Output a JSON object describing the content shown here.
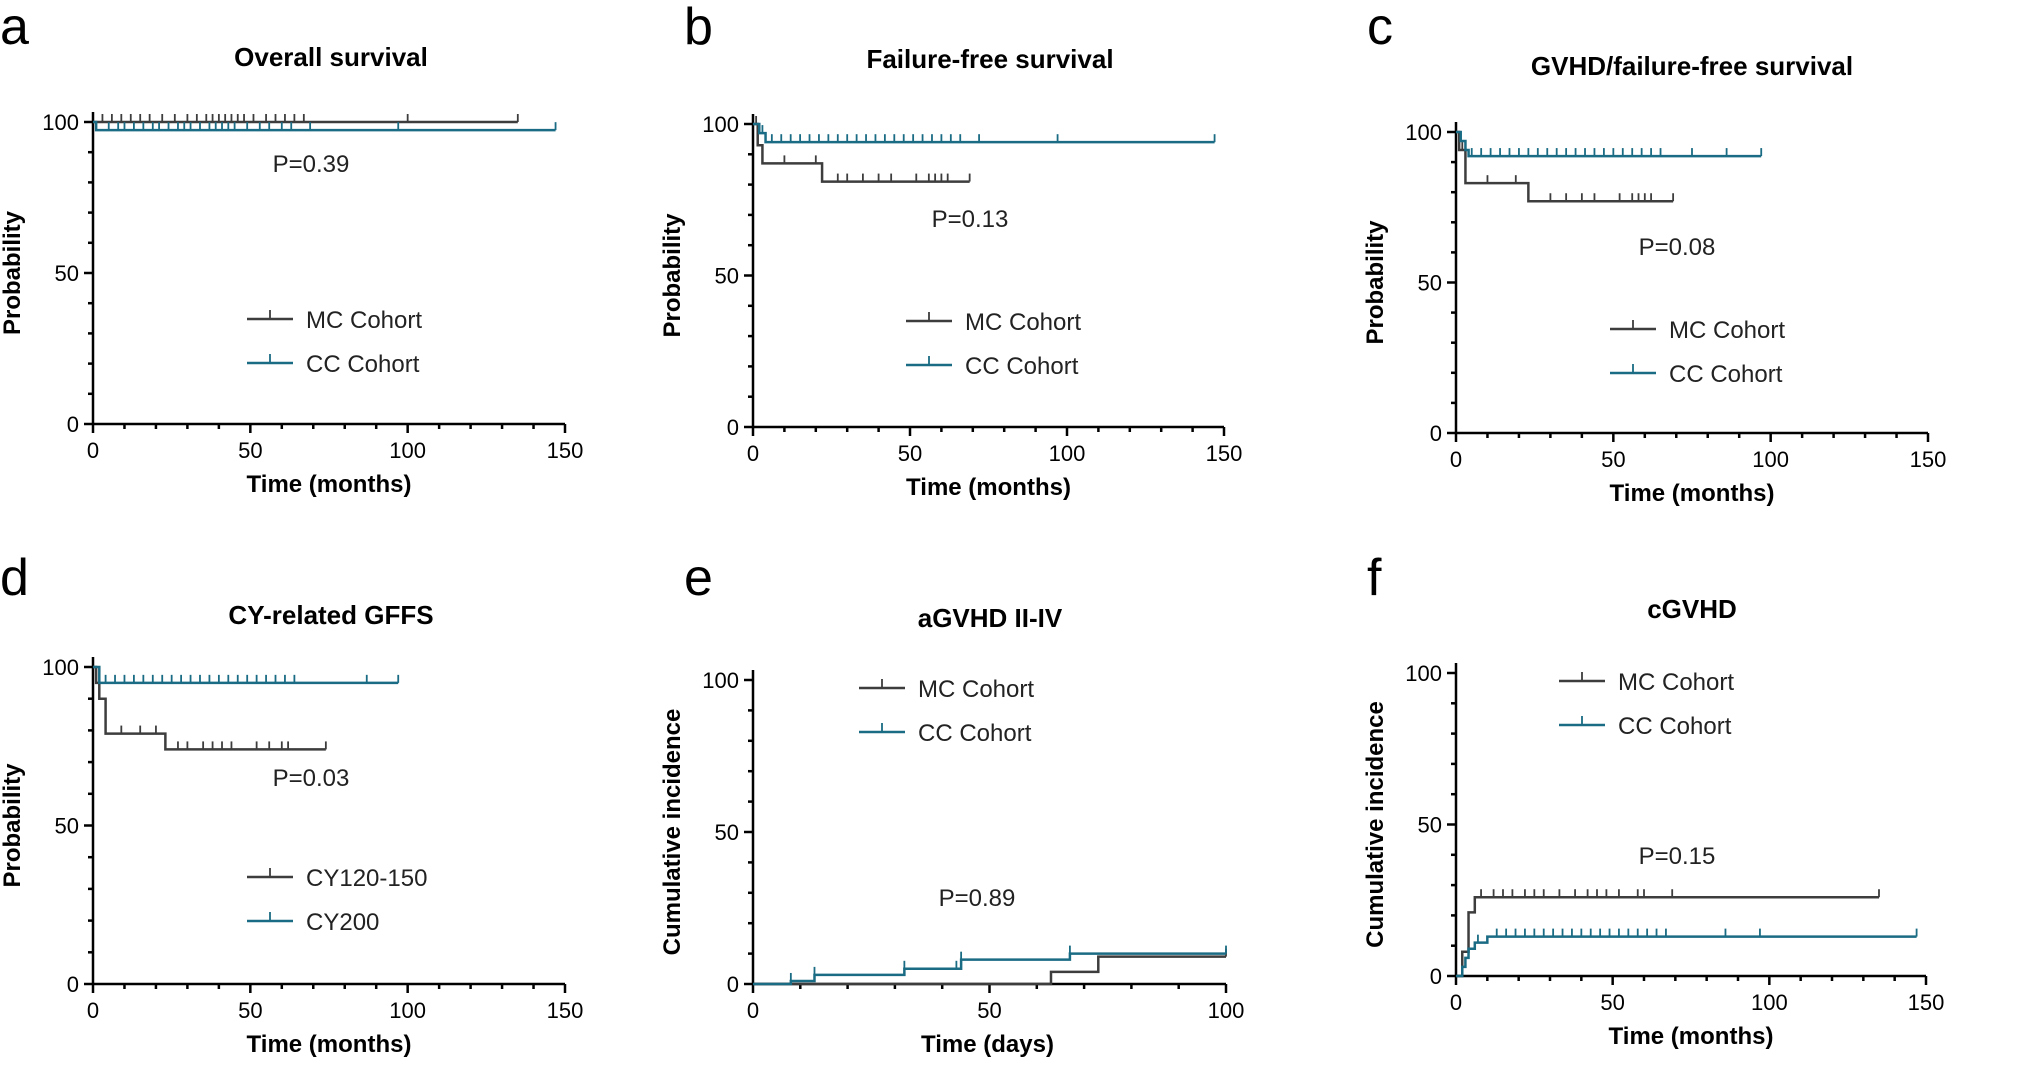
{
  "colors": {
    "mc": "#3d3d3d",
    "cc": "#1a6b84"
  },
  "chart_data": [
    {
      "letter": "a",
      "type": "line",
      "title": "Overall survival",
      "xlabel": "Time (months)",
      "ylabel": "Probability",
      "xlim": [
        0,
        150
      ],
      "ylim": [
        0,
        100
      ],
      "xticks": [
        0,
        50,
        100,
        150
      ],
      "yticks": [
        0,
        50,
        100
      ],
      "pvalue": "P=0.39",
      "legend_pos": "middle-right",
      "series": [
        {
          "name": "MC Cohort",
          "color_key": "mc",
          "steps": [
            [
              0,
              100
            ],
            [
              135,
              100
            ]
          ],
          "censors": [
            3,
            6,
            9,
            12,
            15,
            18,
            22,
            26,
            30,
            33,
            36,
            38,
            40,
            42,
            44,
            46,
            48,
            51,
            55,
            58,
            61,
            64,
            67,
            100,
            135
          ]
        },
        {
          "name": "CC Cohort",
          "color_key": "cc",
          "steps": [
            [
              0,
              100
            ],
            [
              1,
              97.3
            ],
            [
              147,
              97.3
            ]
          ],
          "censors": [
            5,
            8,
            10,
            13,
            16,
            19,
            21,
            24,
            27,
            29,
            31,
            34,
            37,
            39,
            41,
            43,
            45,
            49,
            53,
            56,
            60,
            63,
            69,
            97,
            147
          ]
        }
      ]
    },
    {
      "letter": "b",
      "type": "line",
      "title": "Failure-free survival",
      "xlabel": "Time (months)",
      "ylabel": "Probability",
      "xlim": [
        0,
        150
      ],
      "ylim": [
        0,
        100
      ],
      "xticks": [
        0,
        50,
        100,
        150
      ],
      "yticks": [
        0,
        50,
        100
      ],
      "pvalue": "P=0.13",
      "legend_pos": "middle-right",
      "series": [
        {
          "name": "MC Cohort",
          "color_key": "mc",
          "steps": [
            [
              0,
              100
            ],
            [
              1.5,
              93
            ],
            [
              3,
              87
            ],
            [
              22,
              81
            ],
            [
              69,
              81
            ]
          ],
          "censors": [
            1,
            10,
            20,
            27,
            30,
            35,
            40,
            44,
            52,
            56,
            58,
            60,
            62,
            69
          ]
        },
        {
          "name": "CC Cohort",
          "color_key": "cc",
          "steps": [
            [
              0,
              100
            ],
            [
              2,
              97
            ],
            [
              4,
              94
            ],
            [
              147,
              94
            ]
          ],
          "censors": [
            3,
            6,
            9,
            12,
            15,
            18,
            21,
            24,
            27,
            30,
            33,
            36,
            39,
            42,
            45,
            48,
            51,
            54,
            57,
            60,
            63,
            66,
            72,
            97,
            147
          ]
        }
      ]
    },
    {
      "letter": "c",
      "type": "line",
      "title": "GVHD/failure-free survival",
      "xlabel": "Time (months)",
      "ylabel": "Probability",
      "xlim": [
        0,
        150
      ],
      "ylim": [
        0,
        100
      ],
      "xticks": [
        0,
        50,
        100,
        150
      ],
      "yticks": [
        0,
        50,
        100
      ],
      "pvalue": "P=0.08",
      "legend_pos": "middle-right",
      "series": [
        {
          "name": "MC Cohort",
          "color_key": "mc",
          "steps": [
            [
              0,
              100
            ],
            [
              1,
              94
            ],
            [
              3,
              83
            ],
            [
              23,
              77
            ],
            [
              69,
              77
            ]
          ],
          "censors": [
            2,
            10,
            19,
            30,
            35,
            40,
            44,
            52,
            56,
            58,
            60,
            62,
            69
          ]
        },
        {
          "name": "CC Cohort",
          "color_key": "cc",
          "steps": [
            [
              0,
              100
            ],
            [
              1.5,
              97
            ],
            [
              3,
              94
            ],
            [
              4,
              92
            ],
            [
              97,
              92
            ]
          ],
          "censors": [
            5,
            8,
            11,
            14,
            17,
            20,
            23,
            26,
            29,
            32,
            35,
            38,
            41,
            44,
            47,
            50,
            53,
            56,
            59,
            62,
            65,
            75,
            86,
            97
          ]
        }
      ]
    },
    {
      "letter": "d",
      "type": "line",
      "title": "CY-related GFFS",
      "xlabel": "Time (months)",
      "ylabel": "Probability",
      "xlim": [
        0,
        150
      ],
      "ylim": [
        0,
        100
      ],
      "xticks": [
        0,
        50,
        100,
        150
      ],
      "yticks": [
        0,
        50,
        100
      ],
      "pvalue": "P=0.03",
      "legend_pos": "bottom-right",
      "series": [
        {
          "name": "CY120-150",
          "color_key": "mc",
          "steps": [
            [
              0,
              100
            ],
            [
              1,
              95
            ],
            [
              2,
              90
            ],
            [
              4,
              79
            ],
            [
              23,
              74
            ],
            [
              74,
              74
            ]
          ],
          "censors": [
            9,
            15,
            20,
            27,
            30,
            35,
            38,
            41,
            44,
            52,
            56,
            60,
            62,
            74
          ]
        },
        {
          "name": "CY200",
          "color_key": "cc",
          "steps": [
            [
              0,
              100
            ],
            [
              2,
              95
            ],
            [
              97,
              95
            ]
          ],
          "censors": [
            4,
            7,
            10,
            13,
            16,
            19,
            22,
            25,
            28,
            31,
            34,
            37,
            40,
            43,
            46,
            49,
            52,
            55,
            58,
            61,
            64,
            87,
            97
          ]
        }
      ]
    },
    {
      "letter": "e",
      "type": "line",
      "title": "aGVHD II-IV",
      "xlabel": "Time (days)",
      "ylabel": "Cumulative incidence",
      "xlim": [
        0,
        100
      ],
      "ylim": [
        0,
        100
      ],
      "xticks": [
        0,
        50,
        100
      ],
      "yticks": [
        0,
        50,
        100
      ],
      "pvalue": "P=0.89",
      "legend_pos": "top-right",
      "series": [
        {
          "name": "MC Cohort",
          "color_key": "mc",
          "steps": [
            [
              0,
              0
            ],
            [
              63,
              0
            ],
            [
              63,
              4
            ],
            [
              73,
              4
            ],
            [
              73,
              9
            ],
            [
              100,
              9
            ]
          ],
          "censors": [
            100
          ]
        },
        {
          "name": "CC Cohort",
          "color_key": "cc",
          "steps": [
            [
              0,
              0
            ],
            [
              8,
              0
            ],
            [
              8,
              1
            ],
            [
              13,
              1
            ],
            [
              13,
              3
            ],
            [
              32,
              3
            ],
            [
              32,
              5
            ],
            [
              44,
              5
            ],
            [
              44,
              8
            ],
            [
              67,
              8
            ],
            [
              67,
              10
            ],
            [
              100,
              10
            ]
          ],
          "censors": [
            8,
            13,
            32,
            43,
            44,
            67,
            100
          ]
        }
      ]
    },
    {
      "letter": "f",
      "type": "line",
      "title": "cGVHD",
      "xlabel": "Time (months)",
      "ylabel": "Cumulative incidence",
      "xlim": [
        0,
        150
      ],
      "ylim": [
        0,
        100
      ],
      "xticks": [
        0,
        50,
        100,
        150
      ],
      "yticks": [
        0,
        50,
        100
      ],
      "pvalue": "P=0.15",
      "legend_pos": "top-right",
      "series": [
        {
          "name": "MC Cohort",
          "color_key": "mc",
          "steps": [
            [
              0,
              0
            ],
            [
              2,
              0
            ],
            [
              2,
              8
            ],
            [
              4,
              21
            ],
            [
              6,
              26
            ],
            [
              135,
              26
            ]
          ],
          "censors": [
            8,
            12,
            15,
            18,
            22,
            25,
            28,
            33,
            38,
            42,
            45,
            48,
            52,
            58,
            60,
            69,
            135
          ]
        },
        {
          "name": "CC Cohort",
          "color_key": "cc",
          "steps": [
            [
              0,
              0
            ],
            [
              2,
              0
            ],
            [
              2,
              3
            ],
            [
              3,
              6
            ],
            [
              4,
              9
            ],
            [
              6,
              11
            ],
            [
              10,
              13
            ],
            [
              147,
              13
            ]
          ],
          "censors": [
            7,
            13,
            16,
            19,
            22,
            25,
            28,
            31,
            34,
            37,
            40,
            43,
            46,
            49,
            52,
            55,
            58,
            61,
            64,
            67,
            86,
            97,
            147
          ]
        }
      ]
    }
  ]
}
